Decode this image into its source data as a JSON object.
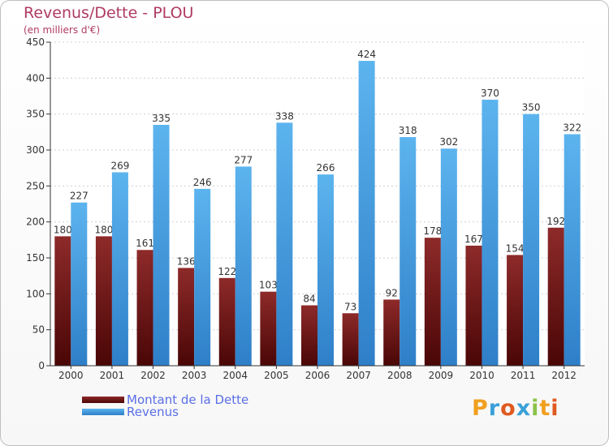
{
  "header": {
    "title": "Revenus/Dette - PLOU",
    "subtitle": "(en milliers d'€)"
  },
  "chart_data": {
    "type": "bar",
    "categories": [
      "2000",
      "2001",
      "2002",
      "2003",
      "2004",
      "2005",
      "2006",
      "2007",
      "2008",
      "2009",
      "2010",
      "2011",
      "2012"
    ],
    "series": [
      {
        "name": "Montant de la Dette",
        "color": "#7a1a1a",
        "values": [
          180,
          180,
          161,
          136,
          122,
          103,
          84,
          73,
          92,
          178,
          167,
          154,
          192
        ]
      },
      {
        "name": "Revenus",
        "color": "#4aa3e6",
        "values": [
          227,
          269,
          335,
          246,
          277,
          338,
          266,
          424,
          318,
          302,
          370,
          350,
          322
        ]
      }
    ],
    "ylim": [
      0,
      450
    ],
    "yticks": [
      0,
      50,
      100,
      150,
      200,
      250,
      300,
      350,
      400,
      450
    ],
    "grid": true,
    "legend": "bottom-left"
  },
  "legend": {
    "debt_label": "Montant de la Dette",
    "revenue_label": "Revenus"
  },
  "brand": {
    "logo_letters": [
      "P",
      "r",
      "o",
      "x",
      "i",
      "t",
      "i"
    ],
    "logo_colors": [
      "#f0a020",
      "#3aa0d8",
      "#e05a20",
      "#3aa0d8",
      "#8bc34a",
      "#f0a020",
      "#e05a20"
    ]
  }
}
